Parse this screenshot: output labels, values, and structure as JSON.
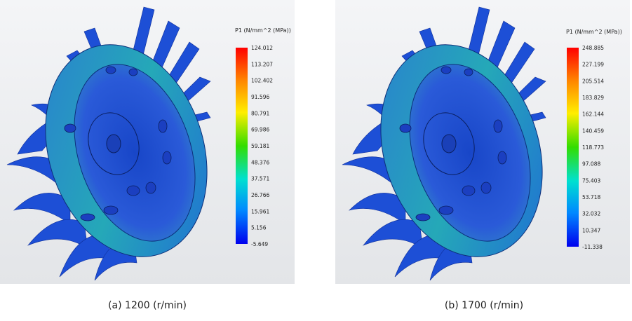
{
  "panels": [
    {
      "legend_title": "P1 (N/mm^2 (MPa))",
      "legend_ticks": [
        "124.012",
        "113.207",
        "102.402",
        "91.596",
        "80.791",
        "69.986",
        "59.181",
        "48.376",
        "37.571",
        "26.766",
        "15.961",
        "5.156",
        "-5.649"
      ],
      "caption": "(a)  1200  (r/min)"
    },
    {
      "legend_title": "P1 (N/mm^2 (MPa))",
      "legend_ticks": [
        "248.885",
        "227.199",
        "205.514",
        "183.829",
        "162.144",
        "140.459",
        "118.773",
        "97.088",
        "75.403",
        "53.718",
        "32.032",
        "10.347",
        "-11.338"
      ],
      "caption": "(b)  1700  (r/min)"
    }
  ]
}
